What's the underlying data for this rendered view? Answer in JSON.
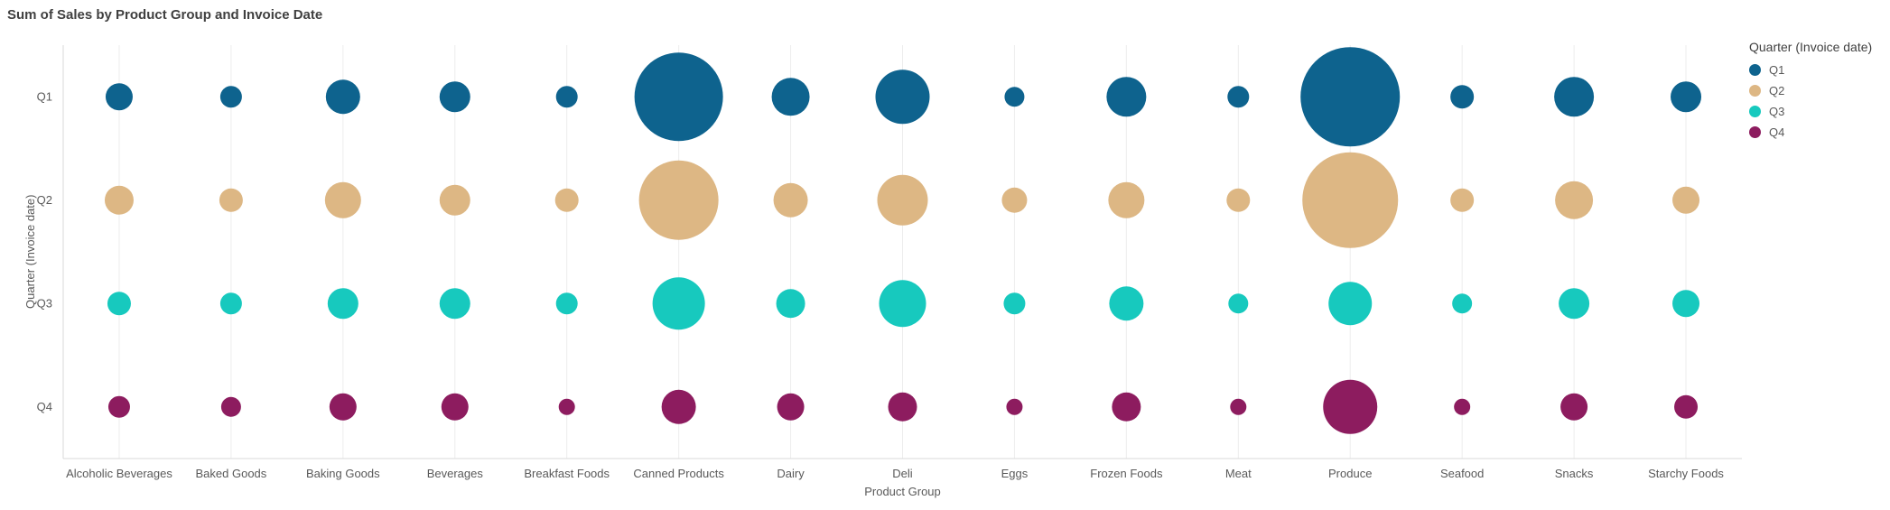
{
  "page": {
    "background_color": "#ffffff"
  },
  "chart_data": {
    "type": "bubble",
    "title": "Sum of Sales by Product Group and Invoice Date",
    "xlabel": "Product Group",
    "ylabel": "Quarter (Invoice date)",
    "legend_title": "Quarter (Invoice date)",
    "legend_position": "top-right",
    "grid": "vertical-only",
    "categories": [
      "Alcoholic Beverages",
      "Baked Goods",
      "Baking Goods",
      "Beverages",
      "Breakfast Foods",
      "Canned Products",
      "Dairy",
      "Deli",
      "Eggs",
      "Frozen Foods",
      "Meat",
      "Produce",
      "Seafood",
      "Snacks",
      "Starchy Foods"
    ],
    "y_categories": [
      "Q1",
      "Q2",
      "Q3",
      "Q4"
    ],
    "series": [
      {
        "name": "Q1",
        "color": "#0e638e",
        "bubble_radius_px": [
          15,
          12,
          19,
          17,
          12,
          49,
          21,
          30,
          11,
          22,
          12,
          55,
          13,
          22,
          17
        ]
      },
      {
        "name": "Q2",
        "color": "#ddb784",
        "bubble_radius_px": [
          16,
          13,
          20,
          17,
          13,
          44,
          19,
          28,
          14,
          20,
          13,
          53,
          13,
          21,
          15
        ]
      },
      {
        "name": "Q3",
        "color": "#17c9be",
        "bubble_radius_px": [
          13,
          12,
          17,
          17,
          12,
          29,
          16,
          26,
          12,
          19,
          11,
          24,
          11,
          17,
          15
        ]
      },
      {
        "name": "Q4",
        "color": "#8d1c5f",
        "bubble_radius_px": [
          12,
          11,
          15,
          15,
          9,
          19,
          15,
          16,
          9,
          16,
          9,
          30,
          9,
          15,
          13
        ]
      }
    ]
  }
}
